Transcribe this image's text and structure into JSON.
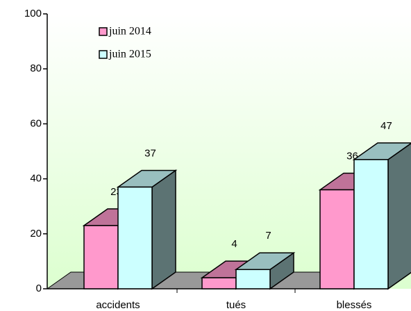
{
  "chart_data": {
    "type": "bar3d",
    "categories": [
      "accidents",
      "tués",
      "blessés"
    ],
    "series": [
      {
        "name": "juin 2014",
        "color": "#ff99cc",
        "values": [
          23,
          4,
          36
        ]
      },
      {
        "name": "juin 2015",
        "color": "#ccffff",
        "values": [
          37,
          7,
          47
        ]
      }
    ],
    "ylim": [
      0,
      100
    ],
    "yticks": [
      0,
      20,
      40,
      60,
      80,
      100
    ],
    "legend": "top-left"
  }
}
